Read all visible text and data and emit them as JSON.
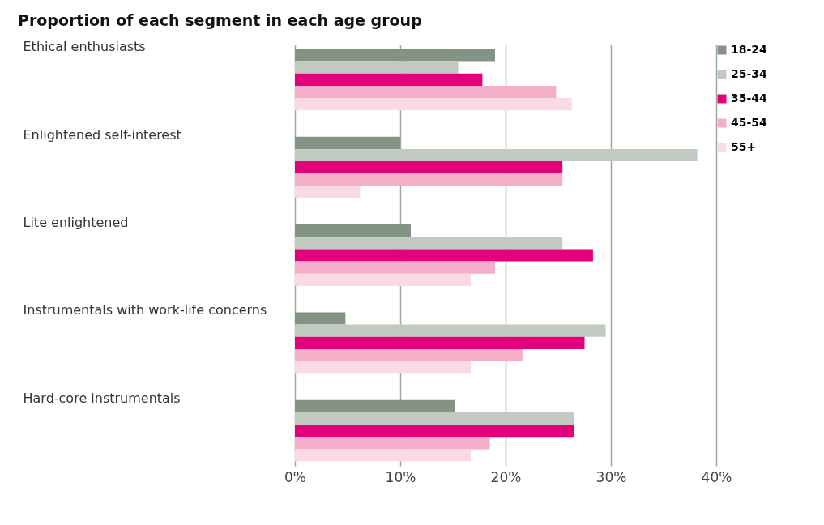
{
  "chart_data": {
    "type": "bar",
    "orientation": "horizontal",
    "title": "Proportion of each segment in each age group",
    "categories": [
      "Ethical enthusiasts",
      "Enlightened self-interest",
      "Lite enlightened",
      "Instrumentals with work-life concerns",
      "Hard-core instrumentals"
    ],
    "series": [
      {
        "name": "18-24",
        "color": "#849484",
        "values": [
          19,
          10,
          11,
          4.8,
          15.2
        ]
      },
      {
        "name": "25-34",
        "color": "#c1cac0",
        "values": [
          15.5,
          38.2,
          25.4,
          29.5,
          26.5
        ]
      },
      {
        "name": "35-44",
        "color": "#e3007b",
        "values": [
          17.8,
          25.4,
          28.3,
          27.5,
          26.5
        ]
      },
      {
        "name": "45-54",
        "color": "#f5aec7",
        "values": [
          24.8,
          25.4,
          19,
          21.6,
          18.5
        ]
      },
      {
        "name": "55+",
        "color": "#fadbe4",
        "values": [
          26.3,
          6.2,
          16.7,
          16.7,
          16.7
        ]
      }
    ],
    "xlim": [
      0,
      40
    ],
    "xticks": [
      {
        "value": 0,
        "label": "0%"
      },
      {
        "value": 10,
        "label": "10%"
      },
      {
        "value": 20,
        "label": "20%"
      },
      {
        "value": 30,
        "label": "30%"
      },
      {
        "value": 40,
        "label": "40%"
      }
    ],
    "grid": "x",
    "legend": "top right"
  }
}
